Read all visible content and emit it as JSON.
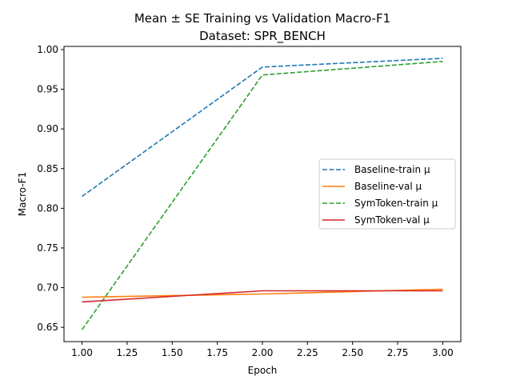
{
  "chart_data": {
    "type": "line",
    "title": "Mean ± SE Training vs Validation Macro-F1",
    "subtitle": "Dataset: SPR_BENCH",
    "xlabel": "Epoch",
    "ylabel": "Macro-F1",
    "xlim": [
      0.9,
      3.1
    ],
    "ylim": [
      0.632,
      1.004
    ],
    "xticks": [
      1.0,
      1.25,
      1.5,
      1.75,
      2.0,
      2.25,
      2.5,
      2.75,
      3.0
    ],
    "xtick_labels": [
      "1.00",
      "1.25",
      "1.50",
      "1.75",
      "2.00",
      "2.25",
      "2.50",
      "2.75",
      "3.00"
    ],
    "yticks": [
      0.65,
      0.7,
      0.75,
      0.8,
      0.85,
      0.9,
      0.95,
      1.0
    ],
    "ytick_labels": [
      "0.65",
      "0.70",
      "0.75",
      "0.80",
      "0.85",
      "0.90",
      "0.95",
      "1.00"
    ],
    "grid": false,
    "legend_position": "center-right",
    "x": [
      1,
      2,
      3
    ],
    "series": [
      {
        "name": "Baseline-train μ",
        "values": [
          0.815,
          0.978,
          0.989
        ],
        "color": "#1f77b4",
        "dash": true
      },
      {
        "name": "Baseline-val μ",
        "values": [
          0.688,
          0.692,
          0.698
        ],
        "color": "#ff7f0e",
        "dash": false
      },
      {
        "name": "SymToken-train μ",
        "values": [
          0.647,
          0.968,
          0.985
        ],
        "color": "#2ca02c",
        "dash": true
      },
      {
        "name": "SymToken-val μ",
        "values": [
          0.682,
          0.696,
          0.696
        ],
        "color": "#d62728",
        "dash": false
      }
    ]
  }
}
